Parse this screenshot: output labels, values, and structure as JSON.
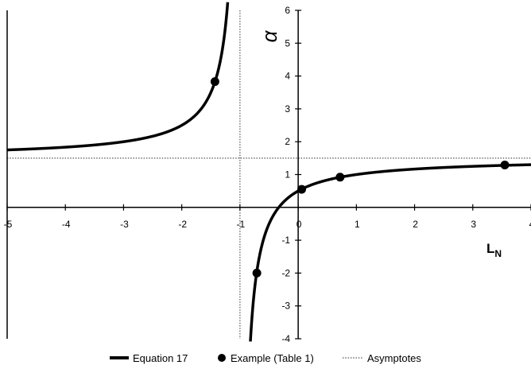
{
  "chart_data": {
    "type": "line",
    "xlabel": "L",
    "xlabel_sub": "N",
    "ylabel": "α",
    "xlim": [
      -5,
      4
    ],
    "ylim": [
      -4,
      6
    ],
    "x_ticks": [
      -5,
      -4,
      -3,
      -2,
      -1,
      0,
      1,
      2,
      3,
      4
    ],
    "y_ticks": [
      -4,
      -3,
      -2,
      -1,
      0,
      1,
      2,
      3,
      4,
      5,
      6
    ],
    "tick_labels_x": [
      "-5",
      "-4",
      "-3",
      "-2",
      "-1",
      "0",
      "1",
      "2",
      "3",
      "4"
    ],
    "tick_labels_y": [
      "-4",
      "-3",
      "-2",
      "-1",
      "1",
      "2",
      "3",
      "4",
      "5",
      "6"
    ],
    "grid": false,
    "legend_position": "bottom",
    "series": [
      {
        "name": "Equation 17",
        "style": "solid",
        "color": "#000000",
        "formula": "alpha = (0.5 + 1.5*x) / (x + 1)",
        "asymptotes": {
          "vertical_x": -1,
          "horizontal_y": 1.5
        }
      },
      {
        "name": "Example (Table 1)",
        "style": "marker",
        "color": "#000000",
        "points": [
          {
            "x": -1.43,
            "y": 3.83
          },
          {
            "x": -0.71,
            "y": -2.0
          },
          {
            "x": 0.06,
            "y": 0.55
          },
          {
            "x": 0.72,
            "y": 0.92
          },
          {
            "x": 3.55,
            "y": 1.29
          }
        ]
      },
      {
        "name": "Asymptotes",
        "style": "dotted",
        "color": "#555555",
        "lines": [
          {
            "orientation": "vertical",
            "value": -1
          },
          {
            "orientation": "horizontal",
            "value": 1.5
          }
        ]
      }
    ]
  }
}
